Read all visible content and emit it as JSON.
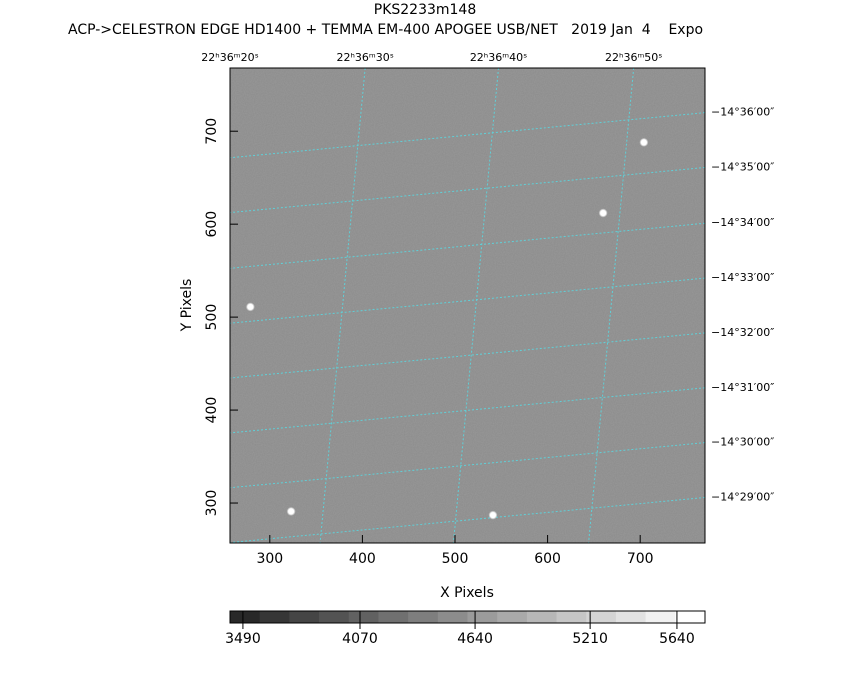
{
  "chart_data": {
    "type": "image",
    "title": "PKS2233m148",
    "subtitle": "ACP->CELESTRON EDGE HD1400 + TEMMA EM-400 APOGEE USB/NET   2019 Jan  4    Expo",
    "xlabel": "X Pixels",
    "ylabel": "Y Pixels",
    "xlim": [
      257,
      770
    ],
    "ylim": [
      257,
      768
    ],
    "xticks": [
      300,
      400,
      500,
      600,
      700
    ],
    "yticks": [
      300,
      400,
      500,
      600,
      700
    ],
    "ra_ticks": [
      {
        "value": 257,
        "label": "22ʰ36ᵐ20ˢ"
      },
      {
        "value": 403,
        "label": "22ʰ36ᵐ30ˢ"
      },
      {
        "value": 547,
        "label": "22ʰ36ᵐ40ˢ"
      },
      {
        "value": 693,
        "label": "22ʰ36ᵐ50ˢ"
      }
    ],
    "dec_ticks": [
      {
        "value": 720,
        "label": "−14°36′00″"
      },
      {
        "value": 661,
        "label": "−14°35′00″"
      },
      {
        "value": 601,
        "label": "−14°34′00″"
      },
      {
        "value": 542,
        "label": "−14°33′00″"
      },
      {
        "value": 483,
        "label": "−14°32′00″"
      },
      {
        "value": 424,
        "label": "−14°31′00″"
      },
      {
        "value": 365,
        "label": "−14°30′00″"
      },
      {
        "value": 306,
        "label": "−14°29′00″"
      }
    ],
    "grid": true,
    "grid_color": "#5fd0d8",
    "sources": {
      "x": [
        279,
        323,
        541,
        660,
        704
      ],
      "y": [
        511,
        291,
        287,
        612,
        688
      ]
    },
    "colorbar": {
      "lim": [
        3426,
        5779
      ],
      "ticks": [
        3490,
        4070,
        4640,
        5210,
        5640
      ]
    }
  }
}
